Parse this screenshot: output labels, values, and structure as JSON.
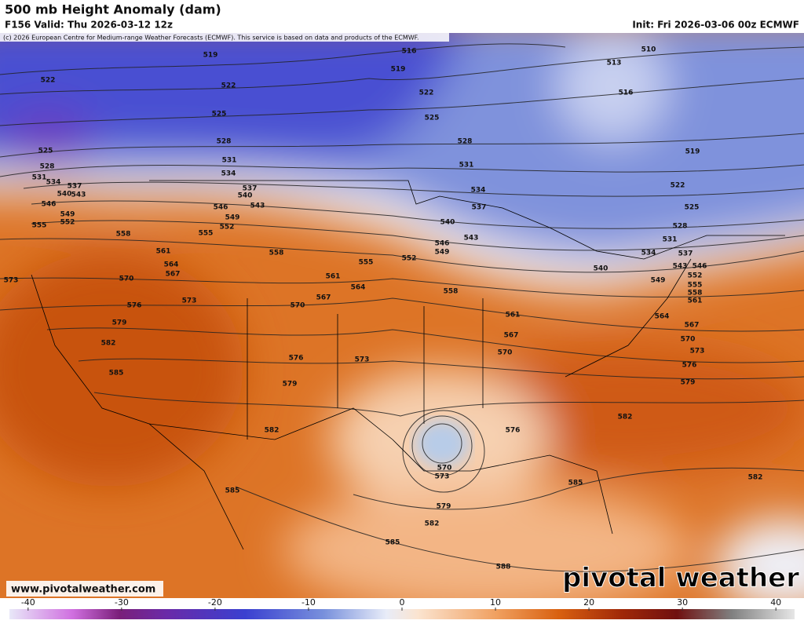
{
  "header": {
    "title": "500 mb Height Anomaly (dam)",
    "valid": "F156 Valid: Thu 2026-03-12 12z",
    "init": "Init: Fri 2026-03-06 00z ECMWF",
    "copyright": "(c) 2026 European Centre for Medium-range Weather Forecasts (ECMWF). This service is based on data and products of the ECMWF."
  },
  "map": {
    "contour_labels": [
      519,
      516,
      519,
      510,
      513,
      516,
      522,
      522,
      522,
      525,
      525,
      528,
      528,
      531,
      519,
      525,
      528,
      531,
      534,
      531,
      534,
      537,
      540,
      543,
      546,
      549,
      552,
      555,
      537,
      540,
      546,
      543,
      549,
      552,
      555,
      558,
      561,
      564,
      567,
      558,
      534,
      537,
      540,
      543,
      546,
      549,
      552,
      555,
      522,
      525,
      528,
      531,
      534,
      537,
      543,
      546,
      552,
      555,
      558,
      561,
      540,
      549,
      573,
      570,
      561,
      564,
      567,
      570,
      573,
      576,
      558,
      579,
      561,
      564,
      567,
      570,
      573,
      576,
      579,
      567,
      570,
      582,
      576,
      573,
      585,
      579,
      582,
      582,
      576,
      570,
      573,
      579,
      582,
      585,
      585,
      582,
      585,
      588
    ],
    "website": "www.pivotalweather.com",
    "brand": "pivotal weather"
  },
  "colorbar": {
    "ticks": [
      -40,
      -30,
      -20,
      -10,
      0,
      10,
      20,
      30,
      40
    ],
    "range": [
      -42,
      42
    ]
  }
}
